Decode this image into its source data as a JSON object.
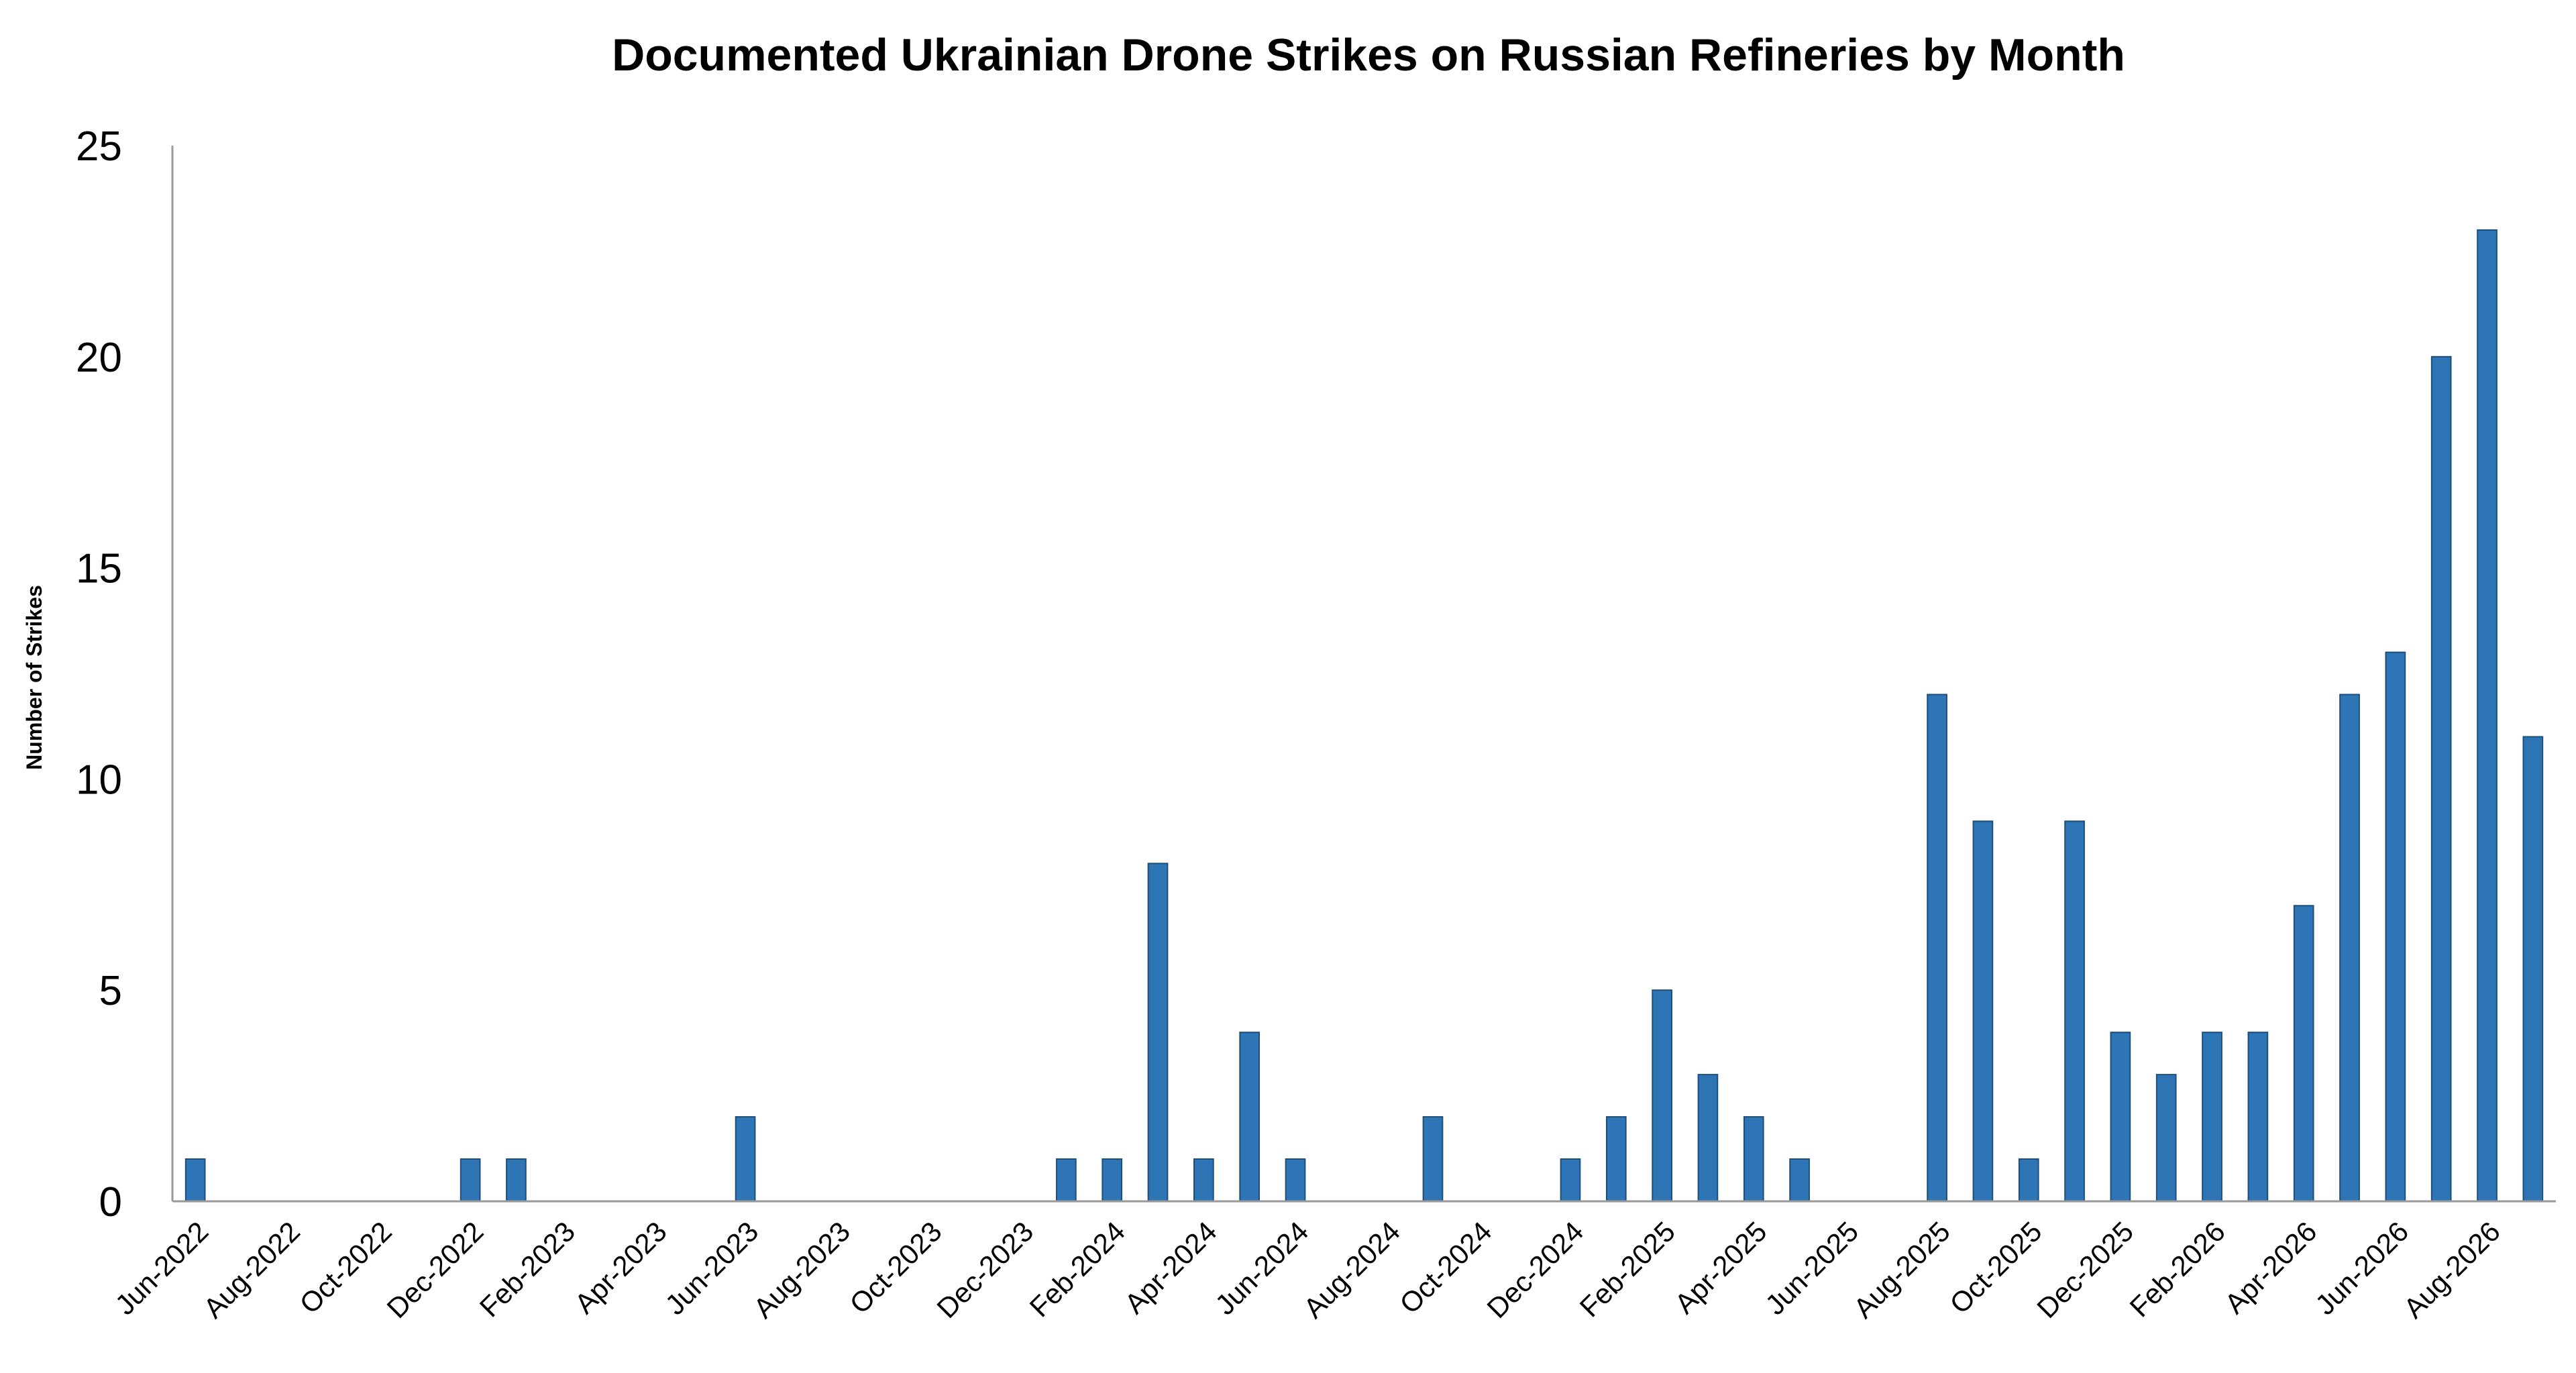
{
  "chart_data": {
    "type": "bar",
    "title": "Documented Ukrainian Drone Strikes on Russian Refineries by Month",
    "xlabel": "",
    "ylabel": "Number of Strikes",
    "ylim": [
      0,
      25
    ],
    "yticks": [
      0,
      5,
      10,
      15,
      20,
      25
    ],
    "grid": false,
    "legend": "none",
    "bar_color": "#2e75b6",
    "categories": [
      "Jun-2022",
      "Jul-2022",
      "Aug-2022",
      "Sep-2022",
      "Oct-2022",
      "Nov-2022",
      "Dec-2022",
      "Jan-2023",
      "Feb-2023",
      "Mar-2023",
      "Apr-2023",
      "May-2023",
      "Jun-2023",
      "Jul-2023",
      "Aug-2023",
      "Sep-2023",
      "Oct-2023",
      "Nov-2023",
      "Dec-2023",
      "Jan-2024",
      "Feb-2024",
      "Mar-2024",
      "Apr-2024",
      "May-2024",
      "Jun-2024",
      "Jul-2024",
      "Aug-2024",
      "Sep-2024",
      "Oct-2024",
      "Nov-2024",
      "Dec-2024",
      "Jan-2025",
      "Feb-2025",
      "Mar-2025",
      "Apr-2025",
      "May-2025",
      "Jun-2025",
      "Jul-2025",
      "Aug-2025",
      "Sep-2025",
      "Oct-2025",
      "Nov-2025",
      "Dec-2025",
      "Jan-2026",
      "Feb-2026",
      "Mar-2026",
      "Apr-2026",
      "May-2026",
      "Jun-2026",
      "Jul-2026",
      "Aug-2026",
      "Sep-2026"
    ],
    "values": [
      1,
      0,
      0,
      0,
      0,
      0,
      1,
      1,
      0,
      0,
      0,
      0,
      2,
      0,
      0,
      0,
      0,
      0,
      0,
      1,
      1,
      8,
      1,
      4,
      1,
      0,
      0,
      2,
      0,
      0,
      1,
      2,
      5,
      3,
      2,
      1,
      0,
      0,
      12,
      9,
      1,
      9,
      4,
      3,
      4,
      4,
      7,
      12,
      13,
      20,
      23,
      11
    ],
    "x_tick_labels": [
      "Jun-2022",
      "Aug-2022",
      "Oct-2022",
      "Dec-2022",
      "Feb-2023",
      "Apr-2023",
      "Jun-2023",
      "Aug-2023",
      "Oct-2023",
      "Dec-2023",
      "Feb-2024",
      "Apr-2024",
      "Jun-2024",
      "Aug-2024",
      "Oct-2024",
      "Dec-2024",
      "Feb-2025",
      "Apr-2025",
      "Jun-2025",
      "Aug-2025",
      "Oct-2025",
      "Dec-2025",
      "Feb-2026",
      "Apr-2026",
      "Jun-2026",
      "Aug-2026"
    ]
  }
}
